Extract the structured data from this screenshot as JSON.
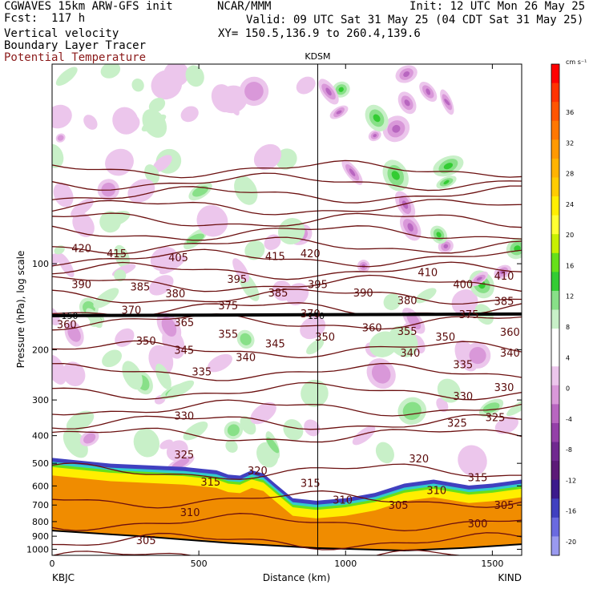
{
  "header": {
    "title_line1": "CGWAVES 15km ARW-GFS init",
    "title_line2": "Fcst:  117 h",
    "center_line1": "NCAR/MMM",
    "init": "Init: 12 UTC Mon 26 May 25",
    "valid": "Valid: 09 UTC Sat 31 May 25 (04 CDT Sat 31 May 25)",
    "xy": "XY= 150.5,136.9 to 260.4,139.6",
    "field1": "Vertical velocity",
    "field2": "Boundary Layer Tracer",
    "field3": "Potential Temperature"
  },
  "colors": {
    "theta_contour": "#6b0f0f",
    "terrain_fill": "#f08c00"
  },
  "chart_data": {
    "type": "heatmap",
    "xlabel": "Distance (km)",
    "ylabel": "Pressure (hPa), log scale",
    "x_ticks": [
      "0",
      "500",
      "1000",
      "1500"
    ],
    "x_tick_values": [
      0,
      500,
      1000,
      1500
    ],
    "xlim": [
      0,
      1600
    ],
    "y_ticks": [
      "100",
      "200",
      "300",
      "400",
      "500",
      "600",
      "700",
      "800",
      "900",
      "1000"
    ],
    "y_tick_values": [
      100,
      200,
      300,
      400,
      500,
      600,
      700,
      800,
      900,
      1000
    ],
    "ylim": [
      1050,
      20
    ],
    "y_scale": "log",
    "x_endpoint_labels": [
      "KBJC",
      "KIND"
    ],
    "station_marker": {
      "label": "KDSM",
      "x_km": 905
    },
    "colorbar": {
      "unit": "cm s⁻¹",
      "tick_labels": [
        "36",
        "32",
        "28",
        "24",
        "20",
        "16",
        "12",
        "8",
        "4",
        "0",
        "-4",
        "-8",
        "-12",
        "-16",
        "-20"
      ],
      "colors": [
        "#ff0000",
        "#ff3300",
        "#ff5500",
        "#ff7700",
        "#ff9900",
        "#ffb300",
        "#ffcc00",
        "#ffee00",
        "#ffff33",
        "#c8f000",
        "#66e01a",
        "#33cc33",
        "#88e088",
        "#c8f0c8",
        "#ffffff",
        "#ffffff",
        "#ecc6ec",
        "#d998d9",
        "#b866c0",
        "#9440a8",
        "#702890",
        "#5c1a78",
        "#3b1a8c",
        "#4040c0",
        "#6a6ae0",
        "#9a9af0"
      ]
    },
    "theta_contour_labels": [
      {
        "label": "420",
        "x": 100,
        "p": 88
      },
      {
        "label": "415",
        "x": 220,
        "p": 92
      },
      {
        "label": "405",
        "x": 430,
        "p": 95
      },
      {
        "label": "415",
        "x": 760,
        "p": 94
      },
      {
        "label": "420",
        "x": 880,
        "p": 92
      },
      {
        "label": "390",
        "x": 100,
        "p": 118
      },
      {
        "label": "385",
        "x": 300,
        "p": 120
      },
      {
        "label": "380",
        "x": 420,
        "p": 127
      },
      {
        "label": "395",
        "x": 630,
        "p": 113
      },
      {
        "label": "385",
        "x": 770,
        "p": 126
      },
      {
        "label": "395",
        "x": 905,
        "p": 118
      },
      {
        "label": "390",
        "x": 1060,
        "p": 126
      },
      {
        "label": "410",
        "x": 1280,
        "p": 107
      },
      {
        "label": "400",
        "x": 1400,
        "p": 118
      },
      {
        "label": "410",
        "x": 1540,
        "p": 110
      },
      {
        "label": "380",
        "x": 1210,
        "p": 134
      },
      {
        "label": "385",
        "x": 1540,
        "p": 135
      },
      {
        "label": "370",
        "x": 270,
        "p": 145
      },
      {
        "label": "375",
        "x": 600,
        "p": 140
      },
      {
        "label": "370",
        "x": 880,
        "p": 149
      },
      {
        "label": "375",
        "x": 1420,
        "p": 150
      },
      {
        "label": "360",
        "x": 50,
        "p": 163
      },
      {
        "label": "365",
        "x": 450,
        "p": 160
      },
      {
        "label": "360",
        "x": 1090,
        "p": 167
      },
      {
        "label": "355",
        "x": 1210,
        "p": 172
      },
      {
        "label": "360",
        "x": 1560,
        "p": 173
      },
      {
        "label": "355",
        "x": 600,
        "p": 176
      },
      {
        "label": "350",
        "x": 320,
        "p": 186
      },
      {
        "label": "345",
        "x": 450,
        "p": 200
      },
      {
        "label": "345",
        "x": 760,
        "p": 190
      },
      {
        "label": "350",
        "x": 930,
        "p": 180
      },
      {
        "label": "350",
        "x": 1340,
        "p": 180
      },
      {
        "label": "340",
        "x": 660,
        "p": 212
      },
      {
        "label": "340",
        "x": 1220,
        "p": 205
      },
      {
        "label": "340",
        "x": 1560,
        "p": 205
      },
      {
        "label": "335",
        "x": 510,
        "p": 238
      },
      {
        "label": "335",
        "x": 1400,
        "p": 225
      },
      {
        "label": "330",
        "x": 1540,
        "p": 270
      },
      {
        "label": "330",
        "x": 1400,
        "p": 290
      },
      {
        "label": "330",
        "x": 450,
        "p": 340
      },
      {
        "label": "325",
        "x": 1380,
        "p": 360
      },
      {
        "label": "325",
        "x": 1510,
        "p": 345
      },
      {
        "label": "325",
        "x": 450,
        "p": 465
      },
      {
        "label": "320",
        "x": 700,
        "p": 530
      },
      {
        "label": "320",
        "x": 1250,
        "p": 480
      },
      {
        "label": "315",
        "x": 540,
        "p": 580
      },
      {
        "label": "315",
        "x": 880,
        "p": 585
      },
      {
        "label": "315",
        "x": 1450,
        "p": 560
      },
      {
        "label": "310",
        "x": 1310,
        "p": 620
      },
      {
        "label": "310",
        "x": 990,
        "p": 670
      },
      {
        "label": "310",
        "x": 470,
        "p": 740
      },
      {
        "label": "305",
        "x": 1180,
        "p": 700
      },
      {
        "label": "305",
        "x": 1540,
        "p": 700
      },
      {
        "label": "300",
        "x": 1450,
        "p": 810
      },
      {
        "label": "305",
        "x": 320,
        "p": 930
      }
    ],
    "tropopause_labels": [
      {
        "label": "150",
        "x": 60,
        "p": 153
      },
      {
        "label": "150",
        "x": 900,
        "p": 153
      }
    ],
    "theta_contour_levels": [
      300,
      305,
      310,
      315,
      320,
      325,
      330,
      335,
      340,
      345,
      350,
      355,
      360,
      365,
      370,
      375,
      380,
      385,
      390,
      395,
      400,
      405,
      410,
      415,
      420
    ]
  }
}
